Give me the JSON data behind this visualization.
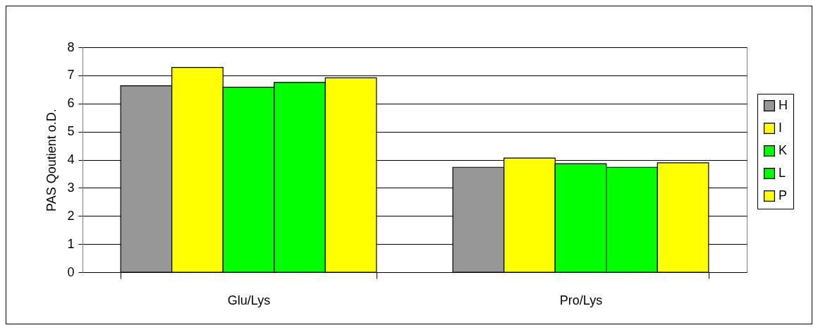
{
  "chart_data": {
    "type": "bar",
    "ylabel": "PAS Qoutient o.D.",
    "categories": [
      "Glu/Lys",
      "Pro/Lys"
    ],
    "series": [
      {
        "name": "H",
        "color": "#969696",
        "values": [
          6.63,
          3.73
        ]
      },
      {
        "name": "I",
        "color": "#ffff00",
        "values": [
          7.28,
          4.06
        ]
      },
      {
        "name": "K",
        "color": "#00ff00",
        "values": [
          6.58,
          3.86
        ]
      },
      {
        "name": "L",
        "color": "#00ff00",
        "values": [
          6.75,
          3.73
        ]
      },
      {
        "name": "P",
        "color": "#ffff00",
        "values": [
          6.91,
          3.89
        ]
      }
    ],
    "ylim": [
      0,
      8
    ],
    "yticks": [
      0,
      1,
      2,
      3,
      4,
      5,
      6,
      7,
      8
    ],
    "grid": "y",
    "legend": "right"
  }
}
